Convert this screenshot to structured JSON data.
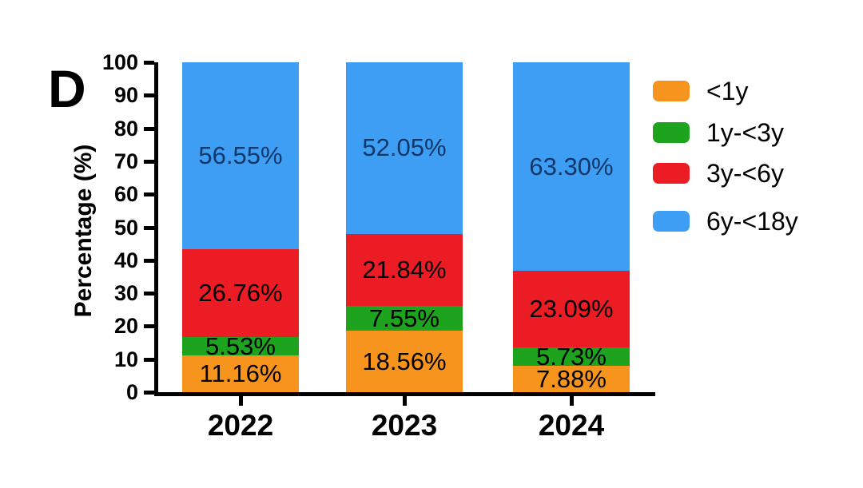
{
  "panel_label": "D",
  "chart_data": {
    "type": "bar",
    "stacked": true,
    "title": "",
    "xlabel": "",
    "ylabel": "Percentage (%)",
    "ylim": [
      0,
      100
    ],
    "yticks": [
      0,
      10,
      20,
      30,
      40,
      50,
      60,
      70,
      80,
      90,
      100
    ],
    "grid": false,
    "legend_position": "right",
    "categories": [
      "2022",
      "2023",
      "2024"
    ],
    "series": [
      {
        "name": "<1y",
        "color": "#F7941E",
        "label_color": "#000000",
        "values": [
          11.16,
          18.56,
          7.88
        ],
        "value_labels": [
          "11.16%",
          "18.56%",
          "7.88%"
        ]
      },
      {
        "name": "1y-<3y",
        "color": "#1EA31E",
        "label_color": "#000000",
        "values": [
          5.53,
          7.55,
          5.73
        ],
        "value_labels": [
          "5.53%",
          "7.55%",
          "5.73%"
        ]
      },
      {
        "name": "3y-<6y",
        "color": "#EB1C24",
        "label_color": "#000000",
        "values": [
          26.76,
          21.84,
          23.09
        ],
        "value_labels": [
          "26.76%",
          "21.84%",
          "23.09%"
        ]
      },
      {
        "name": "6y-<18y",
        "color": "#3D9EF3",
        "label_color": "#12376B",
        "values": [
          56.55,
          52.05,
          63.3
        ],
        "value_labels": [
          "56.55%",
          "52.05%",
          "63.30%"
        ]
      }
    ],
    "axis_color": "#000000",
    "background_color": "#FFFFFF"
  }
}
